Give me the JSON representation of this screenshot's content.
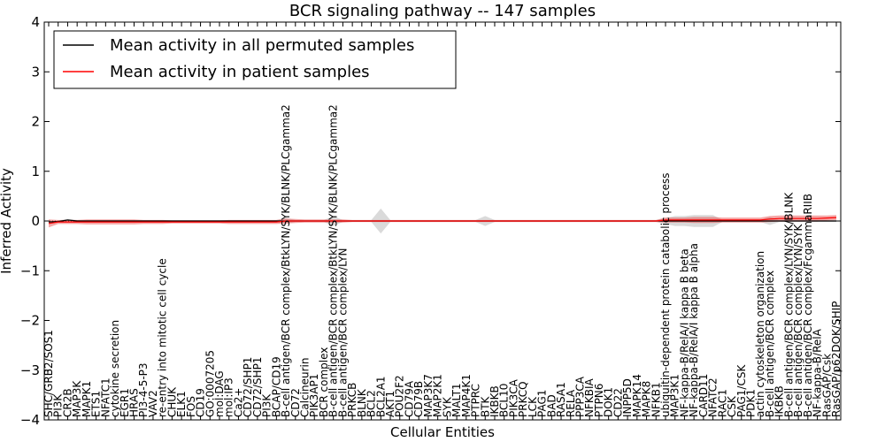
{
  "chart_data": {
    "type": "line",
    "title": "BCR signaling pathway -- 147 samples",
    "xlabel": "Cellular Entities",
    "ylabel": "Inferred Activity",
    "ylim": [
      -4,
      4
    ],
    "yticks": [
      4,
      3,
      2,
      1,
      0,
      -1,
      -2,
      -3,
      -4
    ],
    "ytick_labels": [
      "4",
      "3",
      "2",
      "1",
      "0",
      "−1",
      "−2",
      "−3",
      "−4"
    ],
    "legend_position": "top-left",
    "categories": [
      "SHC/GRB2/SOS1",
      "PI3K",
      "CR2B",
      "MAP3K",
      "MAPK1",
      "ETS1",
      "NFATC1",
      "cytokine secretion",
      "EGR1",
      "HRAS",
      "PI3-4-5-P3",
      "VAV2",
      "re-entry into mitotic cell cycle",
      "CHUK",
      "ELK1",
      "FOS",
      "CD19",
      "GO:0007205",
      "mol:DAG",
      "mol:IP3",
      "Ca2+",
      "CD72/SHP1",
      "CD72/SHP1",
      "PI3K",
      "BCAP/CD19",
      "B-cell antigen/BCR complex/BtkLYN/SYK/BLNK/PLCgamma2",
      "CD72",
      "Calcineurin",
      "PIK3AP1",
      "BCR complex",
      "B-cell antigen/BCR complex/BtkLYN/SYK/BLNK/PLCgamma2",
      "B-cell antigen/BCR complex/LYN",
      "PRKCB",
      "BLNK",
      "BCL2",
      "BCL2A1",
      "AKT1",
      "POU2F2",
      "CD79A",
      "CD79B",
      "MAP3K7",
      "MAP2K1",
      "SYK",
      "MALT1",
      "MAP4K1",
      "PTPRC",
      "BTK",
      "IKBKB",
      "BCL10",
      "PIK3CA",
      "PRKCQ",
      "LCK",
      "PAG1",
      "BAD",
      "RASA1",
      "RELA",
      "PPP3CA",
      "NFKBIA",
      "PTPN6",
      "DOK1",
      "CD22",
      "INPP5D",
      "MAPK14",
      "MAPK8",
      "NFKB1",
      "ubiquitin-dependent protein catabolic process",
      "MAP3K1",
      "NF-kappa-B/RelA/I kappa B beta",
      "NF-kappa-B/RelA/I kappa B alpha",
      "CARD11",
      "NFATC2",
      "RAC1",
      "CSK",
      "PAG1/CSK",
      "PDK1",
      "actin cytoskeleton organization",
      "B-cell antigen/BCR complex",
      "IKBKB",
      "B-cell antigen/BCR complex/LYN/SYK/BLNK",
      "B-cell antigen/BCR complex/LYN/SYK",
      "B-cell antigen/BCR complex/FcgammaRIIB",
      "NF-kappa-B/RelA",
      "RasGAP/Csk",
      "RasGAP/p62DOK/SHIP"
    ],
    "series": [
      {
        "name": "Mean activity in all permuted samples",
        "color": "#000000",
        "values": [
          -0.02,
          -0.01,
          0.02,
          0.0,
          0.0,
          0.0,
          0.0,
          0.0,
          0.0,
          0.0,
          0.0,
          0.0,
          0.0,
          0.0,
          0.0,
          0.0,
          0.0,
          0.0,
          0.0,
          0.0,
          0.0,
          0.0,
          0.0,
          0.0,
          0.0,
          0.0,
          0.0,
          0.0,
          0.0,
          0.0,
          0.0,
          0.0,
          0.0,
          0.0,
          0.0,
          0.0,
          0.0,
          0.0,
          0.0,
          0.0,
          0.0,
          0.0,
          0.0,
          0.0,
          0.0,
          0.0,
          0.0,
          0.0,
          0.0,
          0.0,
          0.0,
          0.0,
          0.0,
          0.0,
          0.0,
          0.0,
          0.0,
          0.0,
          0.0,
          0.0,
          0.0,
          0.0,
          0.0,
          0.0,
          0.0,
          0.0,
          0.0,
          0.0,
          0.0,
          0.0,
          0.0,
          0.0,
          0.0,
          0.0,
          0.0,
          0.0,
          0.0,
          0.0,
          0.0,
          0.0,
          0.0,
          0.0,
          0.0,
          0.0
        ],
        "band_halfwidth": [
          0.02,
          0.02,
          0.02,
          0.02,
          0.02,
          0.02,
          0.02,
          0.02,
          0.02,
          0.02,
          0.02,
          0.02,
          0.02,
          0.02,
          0.02,
          0.02,
          0.02,
          0.02,
          0.02,
          0.02,
          0.02,
          0.02,
          0.02,
          0.02,
          0.02,
          0.06,
          0.02,
          0.02,
          0.02,
          0.02,
          0.1,
          0.02,
          0.02,
          0.02,
          0.02,
          0.25,
          0.02,
          0.02,
          0.02,
          0.02,
          0.02,
          0.02,
          0.02,
          0.02,
          0.02,
          0.02,
          0.1,
          0.02,
          0.02,
          0.02,
          0.02,
          0.02,
          0.02,
          0.02,
          0.02,
          0.02,
          0.02,
          0.02,
          0.02,
          0.02,
          0.02,
          0.02,
          0.02,
          0.02,
          0.02,
          0.06,
          0.1,
          0.1,
          0.12,
          0.12,
          0.12,
          0.02,
          0.02,
          0.02,
          0.02,
          0.02,
          0.08,
          0.02,
          0.02,
          0.02,
          0.02,
          0.02,
          0.02,
          0.02
        ]
      },
      {
        "name": "Mean activity in patient samples",
        "color": "#ff0000",
        "values": [
          -0.05,
          -0.02,
          -0.02,
          -0.02,
          -0.02,
          -0.02,
          -0.02,
          -0.02,
          -0.02,
          -0.02,
          -0.02,
          -0.02,
          -0.02,
          -0.02,
          -0.02,
          -0.02,
          -0.02,
          -0.02,
          -0.02,
          -0.02,
          -0.02,
          -0.02,
          -0.02,
          -0.02,
          -0.02,
          0.0,
          0.0,
          0.0,
          0.0,
          0.0,
          0.0,
          0.0,
          0.0,
          0.0,
          0.0,
          0.0,
          0.0,
          0.0,
          0.0,
          0.0,
          0.0,
          0.0,
          0.0,
          0.0,
          0.0,
          0.0,
          0.0,
          0.0,
          0.0,
          0.0,
          0.0,
          0.0,
          0.0,
          0.0,
          0.0,
          0.0,
          0.0,
          0.0,
          0.0,
          0.0,
          0.0,
          0.0,
          0.0,
          0.0,
          0.0,
          0.02,
          0.02,
          0.02,
          0.02,
          0.02,
          0.02,
          0.02,
          0.02,
          0.02,
          0.02,
          0.02,
          0.04,
          0.05,
          0.05,
          0.05,
          0.05,
          0.05,
          0.06,
          0.07
        ],
        "band_halfwidth": [
          0.08,
          0.04,
          0.04,
          0.04,
          0.05,
          0.05,
          0.05,
          0.05,
          0.05,
          0.05,
          0.04,
          0.04,
          0.04,
          0.03,
          0.03,
          0.03,
          0.03,
          0.03,
          0.03,
          0.04,
          0.04,
          0.04,
          0.04,
          0.04,
          0.04,
          0.05,
          0.04,
          0.03,
          0.03,
          0.03,
          0.03,
          0.03,
          0.02,
          0.02,
          0.02,
          0.02,
          0.02,
          0.02,
          0.02,
          0.02,
          0.02,
          0.02,
          0.02,
          0.02,
          0.02,
          0.02,
          0.02,
          0.02,
          0.02,
          0.02,
          0.02,
          0.02,
          0.02,
          0.02,
          0.02,
          0.02,
          0.02,
          0.02,
          0.02,
          0.02,
          0.02,
          0.02,
          0.02,
          0.02,
          0.02,
          0.05,
          0.05,
          0.05,
          0.06,
          0.06,
          0.06,
          0.05,
          0.05,
          0.05,
          0.05,
          0.05,
          0.06,
          0.06,
          0.06,
          0.06,
          0.06,
          0.06,
          0.05,
          0.05
        ]
      }
    ]
  }
}
